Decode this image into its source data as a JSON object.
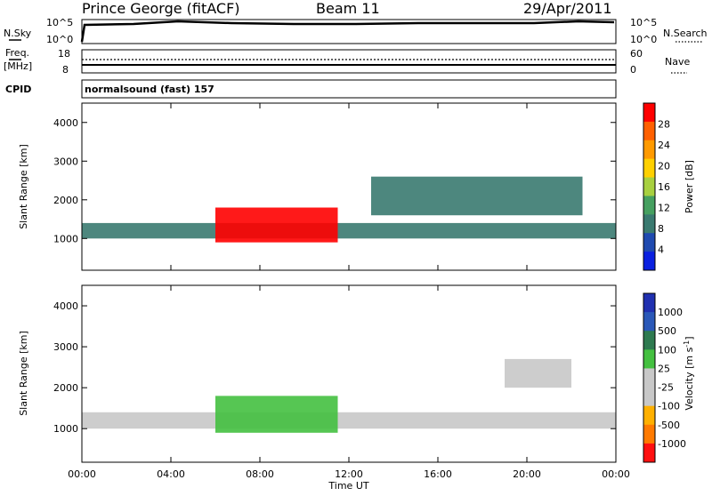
{
  "header": {
    "title_left": "Prince George (fitACF)",
    "title_mid": "Beam 11",
    "title_right": "29/Apr/2011"
  },
  "strips": {
    "nsky_label": "N.Sky",
    "nsky_ticks": [
      "10^5",
      "10^0"
    ],
    "nsearch_label": "N.Search",
    "nsearch_ticks": [
      "10^5",
      "10^0"
    ],
    "freq_label": "Freq.",
    "freq_unit": "[MHz]",
    "freq_ticks": [
      "18",
      "8"
    ],
    "nave_label": "Nave",
    "nave_ticks": [
      "60",
      "0"
    ],
    "cpid_label": "CPID",
    "cpid_text": "normalsound (fast) 157"
  },
  "power_panel": {
    "ylabel": "Slant Range [km]",
    "yticks": [
      "4000",
      "3000",
      "2000",
      "1000"
    ],
    "colorbar_label": "Power [dB]",
    "colorbar_ticks": [
      "28",
      "24",
      "20",
      "16",
      "12",
      "8",
      "4"
    ],
    "colors": [
      "#ff0000",
      "#ff6000",
      "#ff9a00",
      "#ffd000",
      "#a8d040",
      "#46a060",
      "#3a7a70",
      "#1f4ab0",
      "#0a20e0"
    ]
  },
  "velocity_panel": {
    "ylabel": "Slant Range [km]",
    "yticks": [
      "4000",
      "3000",
      "2000",
      "1000"
    ],
    "colorbar_label": "Velocity [m s",
    "colorbar_label_sup": "-1",
    "colorbar_label_end": "]",
    "colorbar_ticks": [
      "1000",
      "500",
      "100",
      "25",
      "-25",
      "-100",
      "-500",
      "-1000"
    ],
    "colors": [
      "#2030b0",
      "#2a58b8",
      "#2e7a50",
      "#44c040",
      "#c8c8c8",
      "#c8c8c8",
      "#ffb000",
      "#ff7a00",
      "#ff1010"
    ]
  },
  "xaxis": {
    "label": "Time UT",
    "ticks": [
      "00:00",
      "04:00",
      "08:00",
      "12:00",
      "16:00",
      "20:00",
      "00:00"
    ]
  },
  "chart_data": [
    {
      "type": "heatmap",
      "title": "Prince George (fitACF) Beam 11 29/Apr/2011",
      "xlabel": "Time UT",
      "ylabel": "Slant Range [km]",
      "xlim": [
        0,
        24
      ],
      "ylim": [
        180,
        4500
      ],
      "colorbar": "Power [dB]",
      "colorbar_range": [
        0,
        30
      ],
      "features": [
        {
          "name": "near-range band",
          "x": [
            0,
            24
          ],
          "y": [
            1000,
            1400
          ],
          "value": 10
        },
        {
          "name": "strong echo region",
          "x": [
            6,
            11.5
          ],
          "y": [
            900,
            1800
          ],
          "value": 30
        },
        {
          "name": "upper band",
          "x": [
            13,
            22.5
          ],
          "y": [
            1600,
            2600
          ],
          "value": 8
        }
      ]
    },
    {
      "type": "heatmap",
      "title": "Prince George (fitACF) Beam 11 29/Apr/2011",
      "xlabel": "Time UT",
      "ylabel": "Slant Range [km]",
      "xlim": [
        0,
        24
      ],
      "ylim": [
        180,
        4500
      ],
      "colorbar": "Velocity [m s-1]",
      "colorbar_range": [
        -1000,
        1000
      ],
      "features": [
        {
          "name": "ground scatter band",
          "x": [
            0,
            24
          ],
          "y": [
            1000,
            1400
          ],
          "value": 0
        },
        {
          "name": "positive velocity region",
          "x": [
            6,
            11.5
          ],
          "y": [
            900,
            1800
          ],
          "value": 300
        },
        {
          "name": "negative velocity region",
          "x": [
            19,
            22
          ],
          "y": [
            2000,
            2700
          ],
          "value": -200
        }
      ]
    }
  ]
}
